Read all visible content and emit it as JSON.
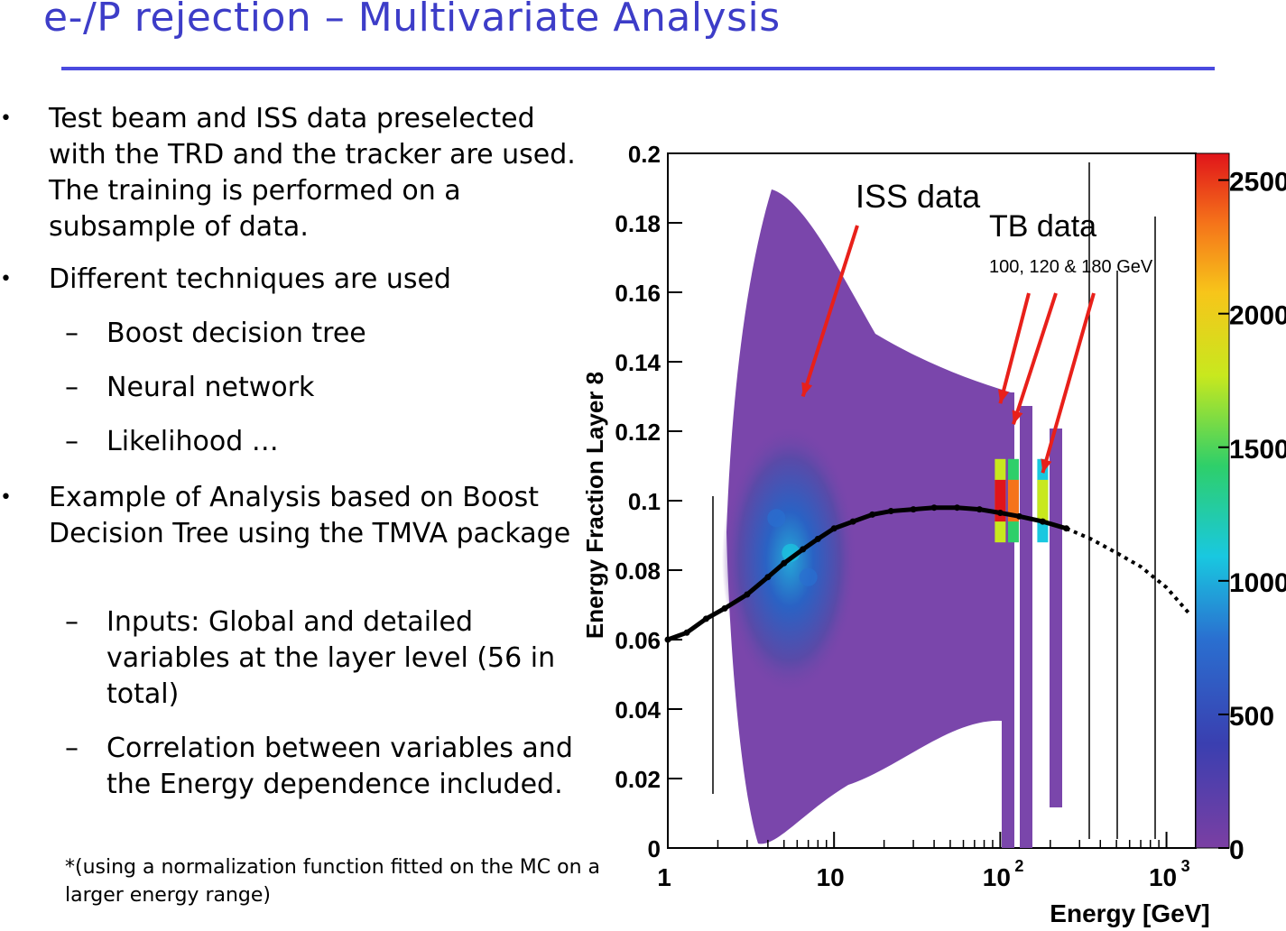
{
  "slide": {
    "title": "e-/P rejection – Multivariate Analysis",
    "bullets": [
      {
        "text": "Test beam and ISS data preselected with the TRD and the tracker are used. The training is performed on a subsample of data."
      },
      {
        "text": "Different techniques are used"
      },
      {
        "text": "Example of Analysis based on Boost Decision Tree using the TMVA package"
      }
    ],
    "sub_items_1": [
      "Boost decision tree",
      "Neural network",
      "Likelihood …"
    ],
    "sub_items_2": [
      "Inputs: Global and detailed variables at the layer level  (56 in total)",
      " Correlation between variables and the Energy dependence included."
    ],
    "footnote": "*(using a normalization function fitted on the MC on a larger energy range)",
    "bullet_char": "•",
    "dash_char": "–"
  },
  "chart_data": {
    "type": "heatmap",
    "title": "",
    "xlabel": "Energy [GeV]",
    "ylabel": "Energy Fraction Layer 8",
    "xscale": "log",
    "xlim": [
      1,
      1500
    ],
    "ylim": [
      0,
      0.2
    ],
    "x_ticks": [
      "1",
      "10",
      "10",
      "10"
    ],
    "x_tick_exponents": [
      "",
      "",
      "2",
      "3"
    ],
    "x_tick_values": [
      1,
      10,
      100,
      1000
    ],
    "y_ticks": [
      "0",
      "0.02",
      "0.04",
      "0.06",
      "0.08",
      "0.1",
      "0.12",
      "0.14",
      "0.16",
      "0.18",
      "0.2"
    ],
    "y_tick_values": [
      0,
      0.02,
      0.04,
      0.06,
      0.08,
      0.1,
      0.12,
      0.14,
      0.16,
      0.18,
      0.2
    ],
    "colorbar": {
      "ticks": [
        "0",
        "500",
        "1000",
        "1500",
        "2000",
        "2500"
      ],
      "values": [
        0,
        500,
        1000,
        1500,
        2000,
        2500
      ],
      "range": [
        0,
        2600
      ]
    },
    "annotations": [
      {
        "text": "ISS data",
        "target": [
          6.5,
          0.13
        ]
      },
      {
        "text": "TB data",
        "sub": "100, 120 & 180 GeV",
        "targets": [
          [
            100,
            0.128
          ],
          [
            120,
            0.122
          ],
          [
            180,
            0.108
          ]
        ]
      }
    ],
    "profile": {
      "x": [
        1,
        1.3,
        1.7,
        2.2,
        3,
        4,
        5,
        6.5,
        8,
        10,
        13,
        17,
        22,
        30,
        40,
        55,
        75,
        100,
        130,
        180,
        250
      ],
      "y": [
        0.06,
        0.062,
        0.066,
        0.069,
        0.073,
        0.078,
        0.082,
        0.086,
        0.089,
        0.092,
        0.094,
        0.096,
        0.097,
        0.0975,
        0.098,
        0.098,
        0.0975,
        0.0965,
        0.0955,
        0.094,
        0.092
      ]
    },
    "extrapolation": {
      "x": [
        250,
        350,
        500,
        700,
        1000,
        1400
      ],
      "y": [
        0.092,
        0.089,
        0.085,
        0.081,
        0.075,
        0.067
      ]
    },
    "iss_core": [
      {
        "x": 5.5,
        "y": 0.085,
        "value": 800
      },
      {
        "x": 4.5,
        "y": 0.095,
        "value": 550
      },
      {
        "x": 7,
        "y": 0.078,
        "value": 500
      }
    ],
    "tb_peaks": [
      {
        "x": 100,
        "y": 0.1,
        "value": 2500
      },
      {
        "x": 120,
        "y": 0.1,
        "value": 2300
      },
      {
        "x": 180,
        "y": 0.1,
        "value": 1600
      }
    ],
    "grid": false,
    "legend": "none"
  }
}
